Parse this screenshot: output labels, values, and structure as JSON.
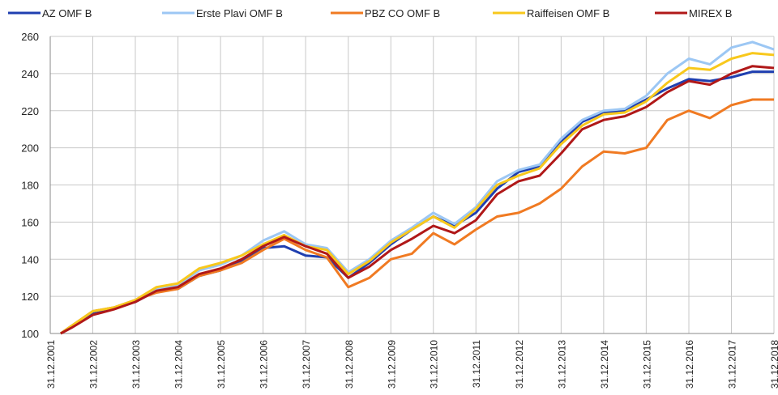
{
  "chart_data": {
    "type": "line",
    "x": [
      "31.03.2002",
      "30.06.2002",
      "31.12.2002",
      "30.06.2003",
      "31.12.2003",
      "30.06.2004",
      "31.12.2004",
      "30.06.2005",
      "31.12.2005",
      "30.06.2006",
      "31.12.2006",
      "30.06.2007",
      "31.12.2007",
      "30.06.2008",
      "31.12.2008",
      "30.06.2009",
      "31.12.2009",
      "30.06.2010",
      "31.12.2010",
      "30.06.2011",
      "31.12.2011",
      "30.06.2012",
      "31.12.2012",
      "30.06.2013",
      "31.12.2013",
      "30.06.2014",
      "31.12.2014",
      "30.06.2015",
      "31.12.2015",
      "30.06.2016",
      "31.12.2016",
      "30.06.2017",
      "31.12.2017",
      "30.06.2018",
      "31.12.2018"
    ],
    "series": [
      {
        "name": "AZ OMF B",
        "color": "#1f3fb0",
        "values": [
          100,
          104,
          111,
          114,
          117,
          123,
          124,
          131,
          134,
          139,
          146,
          147,
          142,
          141,
          130,
          138,
          148,
          156,
          163,
          158,
          165,
          178,
          187,
          190,
          203,
          214,
          219,
          220,
          226,
          232,
          237,
          236,
          238,
          241,
          241
        ]
      },
      {
        "name": "Erste Plavi OMF B",
        "color": "#9cc7f4",
        "values": [
          100,
          104,
          112,
          114,
          118,
          124,
          126,
          134,
          137,
          142,
          150,
          155,
          148,
          146,
          133,
          140,
          150,
          157,
          165,
          159,
          168,
          182,
          188,
          191,
          205,
          215,
          220,
          221,
          228,
          240,
          248,
          245,
          254,
          257,
          253
        ]
      },
      {
        "name": "PBZ CO OMF B",
        "color": "#f07a22",
        "values": [
          100,
          104,
          112,
          114,
          118,
          122,
          124,
          131,
          134,
          138,
          145,
          151,
          145,
          141,
          125,
          130,
          140,
          143,
          154,
          148,
          156,
          163,
          165,
          170,
          178,
          190,
          198,
          197,
          200,
          215,
          220,
          216,
          223,
          226,
          226
        ]
      },
      {
        "name": "Raiffeisen OMF B",
        "color": "#f8c81c",
        "values": [
          100,
          104,
          112,
          114,
          118,
          125,
          127,
          135,
          138,
          142,
          148,
          153,
          147,
          145,
          132,
          139,
          149,
          156,
          163,
          157,
          167,
          180,
          185,
          189,
          202,
          212,
          218,
          219,
          225,
          235,
          243,
          242,
          248,
          251,
          250
        ]
      },
      {
        "name": "MIREX B",
        "color": "#b01818",
        "values": [
          100,
          103,
          110,
          113,
          117,
          123,
          125,
          132,
          135,
          140,
          147,
          152,
          147,
          143,
          130,
          136,
          145,
          151,
          158,
          154,
          161,
          175,
          182,
          185,
          197,
          210,
          215,
          217,
          222,
          230,
          236,
          234,
          240,
          244,
          243
        ]
      }
    ],
    "xticks": [
      "31.12.2001",
      "31.12.2002",
      "31.12.2003",
      "31.12.2004",
      "31.12.2005",
      "31.12.2006",
      "31.12.2007",
      "31.12.2008",
      "31.12.2009",
      "31.12.2010",
      "31.12.2011",
      "31.12.2012",
      "31.12.2013",
      "31.12.2014",
      "31.12.2015",
      "31.12.2016",
      "31.12.2017",
      "31.12.2018"
    ],
    "ylim": [
      100,
      260
    ],
    "yticks": [
      100,
      120,
      140,
      160,
      180,
      200,
      220,
      240,
      260
    ],
    "grid": true
  }
}
